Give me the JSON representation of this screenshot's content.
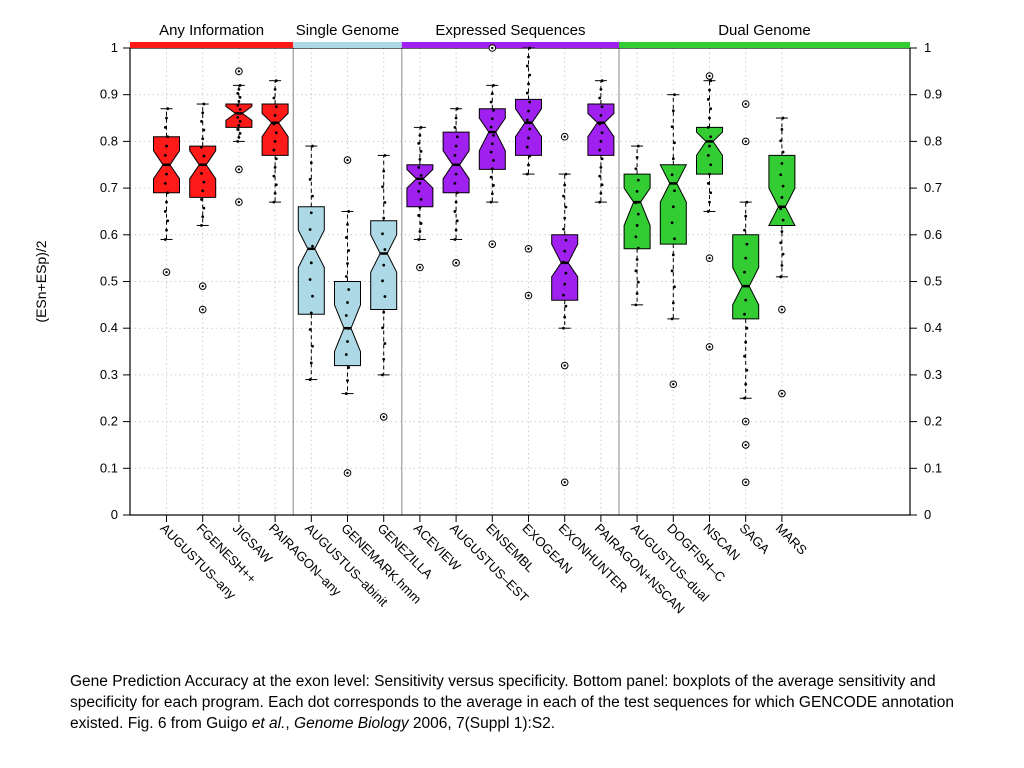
{
  "chart_data": {
    "type": "box",
    "ylabel": "(ESn+ESp)/2",
    "ylim": [
      0,
      1
    ],
    "yticks": [
      0,
      0.1,
      0.2,
      0.3,
      0.4,
      0.5,
      0.6,
      0.7,
      0.8,
      0.9,
      1
    ],
    "ytick_labels": [
      "0",
      "0.1",
      "0.2",
      "0.3",
      "0.4",
      "0.5",
      "0.6",
      "0.7",
      "0.8",
      "0.9",
      "1"
    ],
    "grid": true,
    "groups": [
      {
        "name": "Any Information",
        "color": "#ff1a1a",
        "from": 0,
        "to": 3
      },
      {
        "name": "Single Genome",
        "color": "#add8e6",
        "from": 4,
        "to": 6
      },
      {
        "name": "Expressed Sequences",
        "color": "#a020f0",
        "from": 7,
        "to": 12
      },
      {
        "name": "Dual Genome",
        "color": "#33cc33",
        "from": 13,
        "to": 17
      }
    ],
    "boxes": [
      {
        "label": "AUGUSTUS–any",
        "group": 0,
        "q1": 0.69,
        "median": 0.75,
        "q3": 0.81,
        "whisker_low": 0.59,
        "whisker_high": 0.87,
        "notch_low": 0.72,
        "notch_high": 0.78,
        "outliers": [
          0.52
        ]
      },
      {
        "label": "FGENESH++",
        "group": 0,
        "q1": 0.68,
        "median": 0.75,
        "q3": 0.79,
        "whisker_low": 0.62,
        "whisker_high": 0.88,
        "notch_low": 0.72,
        "notch_high": 0.78,
        "outliers": [
          0.49,
          0.44
        ]
      },
      {
        "label": "JIGSAW",
        "group": 0,
        "q1": 0.83,
        "median": 0.86,
        "q3": 0.88,
        "whisker_low": 0.8,
        "whisker_high": 0.92,
        "notch_low": 0.845,
        "notch_high": 0.875,
        "outliers": [
          0.95,
          0.74,
          0.67
        ]
      },
      {
        "label": "PAIRAGON–any",
        "group": 0,
        "q1": 0.77,
        "median": 0.84,
        "q3": 0.88,
        "whisker_low": 0.67,
        "whisker_high": 0.93,
        "notch_low": 0.81,
        "notch_high": 0.86,
        "outliers": []
      },
      {
        "label": "AUGUSTUS–abinit",
        "group": 1,
        "q1": 0.43,
        "median": 0.57,
        "q3": 0.66,
        "whisker_low": 0.29,
        "whisker_high": 0.79,
        "notch_low": 0.53,
        "notch_high": 0.61,
        "outliers": []
      },
      {
        "label": "GENEMARK.hmm",
        "group": 1,
        "q1": 0.32,
        "median": 0.4,
        "q3": 0.5,
        "whisker_low": 0.26,
        "whisker_high": 0.65,
        "notch_low": 0.35,
        "notch_high": 0.45,
        "outliers": [
          0.76,
          0.09
        ]
      },
      {
        "label": "GENEZILLA",
        "group": 1,
        "q1": 0.44,
        "median": 0.56,
        "q3": 0.63,
        "whisker_low": 0.3,
        "whisker_high": 0.77,
        "notch_low": 0.52,
        "notch_high": 0.6,
        "outliers": [
          0.21
        ]
      },
      {
        "label": "ACEVIEW",
        "group": 2,
        "q1": 0.66,
        "median": 0.72,
        "q3": 0.75,
        "whisker_low": 0.59,
        "whisker_high": 0.83,
        "notch_low": 0.7,
        "notch_high": 0.74,
        "outliers": [
          0.53
        ]
      },
      {
        "label": "AUGUSTUS–EST",
        "group": 2,
        "q1": 0.69,
        "median": 0.75,
        "q3": 0.82,
        "whisker_low": 0.59,
        "whisker_high": 0.87,
        "notch_low": 0.72,
        "notch_high": 0.78,
        "outliers": [
          0.54
        ]
      },
      {
        "label": "ENSEMBL",
        "group": 2,
        "q1": 0.74,
        "median": 0.82,
        "q3": 0.87,
        "whisker_low": 0.67,
        "whisker_high": 0.92,
        "notch_low": 0.78,
        "notch_high": 0.85,
        "outliers": [
          1.0,
          0.58
        ]
      },
      {
        "label": "EXOGEAN",
        "group": 2,
        "q1": 0.77,
        "median": 0.84,
        "q3": 0.89,
        "whisker_low": 0.73,
        "whisker_high": 1.0,
        "notch_low": 0.81,
        "notch_high": 0.87,
        "outliers": [
          0.57,
          0.47
        ]
      },
      {
        "label": "EXONHUNTER",
        "group": 2,
        "q1": 0.46,
        "median": 0.54,
        "q3": 0.6,
        "whisker_low": 0.4,
        "whisker_high": 0.73,
        "notch_low": 0.51,
        "notch_high": 0.58,
        "outliers": [
          0.81,
          0.32,
          0.07
        ]
      },
      {
        "label": "PAIRAGON+NSCAN",
        "group": 2,
        "q1": 0.77,
        "median": 0.84,
        "q3": 0.88,
        "whisker_low": 0.67,
        "whisker_high": 0.93,
        "notch_low": 0.81,
        "notch_high": 0.86,
        "outliers": []
      },
      {
        "label": "AUGUSTUS–dual",
        "group": 3,
        "q1": 0.57,
        "median": 0.67,
        "q3": 0.73,
        "whisker_low": 0.45,
        "whisker_high": 0.79,
        "notch_low": 0.62,
        "notch_high": 0.7,
        "outliers": []
      },
      {
        "label": "DOGFISH–C",
        "group": 3,
        "q1": 0.58,
        "median": 0.71,
        "q3": 0.75,
        "whisker_low": 0.42,
        "whisker_high": 0.9,
        "notch_low": 0.67,
        "notch_high": 0.75,
        "outliers": [
          0.28
        ]
      },
      {
        "label": "NSCAN",
        "group": 3,
        "q1": 0.73,
        "median": 0.8,
        "q3": 0.83,
        "whisker_low": 0.65,
        "whisker_high": 0.93,
        "notch_low": 0.77,
        "notch_high": 0.82,
        "outliers": [
          0.94,
          0.55,
          0.36
        ]
      },
      {
        "label": "SAGA",
        "group": 3,
        "q1": 0.42,
        "median": 0.49,
        "q3": 0.6,
        "whisker_low": 0.25,
        "whisker_high": 0.67,
        "notch_low": 0.45,
        "notch_high": 0.53,
        "outliers": [
          0.88,
          0.8,
          0.2,
          0.15,
          0.07
        ]
      },
      {
        "label": "MARS",
        "group": 3,
        "q1": 0.62,
        "median": 0.66,
        "q3": 0.77,
        "whisker_low": 0.51,
        "whisker_high": 0.85,
        "notch_low": 0.62,
        "notch_high": 0.7,
        "outliers": [
          0.44,
          0.26
        ]
      }
    ]
  },
  "caption": {
    "part1": "Gene Prediction Accuracy at the exon level: Sensitivity versus specificity. Bottom panel: boxplots of the average sensitivity and specificity for each program. Each dot corresponds to the average in each of the test sequences for which GENCODE annotation existed. Fig. 6 from Guigo ",
    "etal": "et al.",
    "sep": ", ",
    "journal": "Genome Biology",
    "part2": " 2006, 7(Suppl 1):S2."
  }
}
